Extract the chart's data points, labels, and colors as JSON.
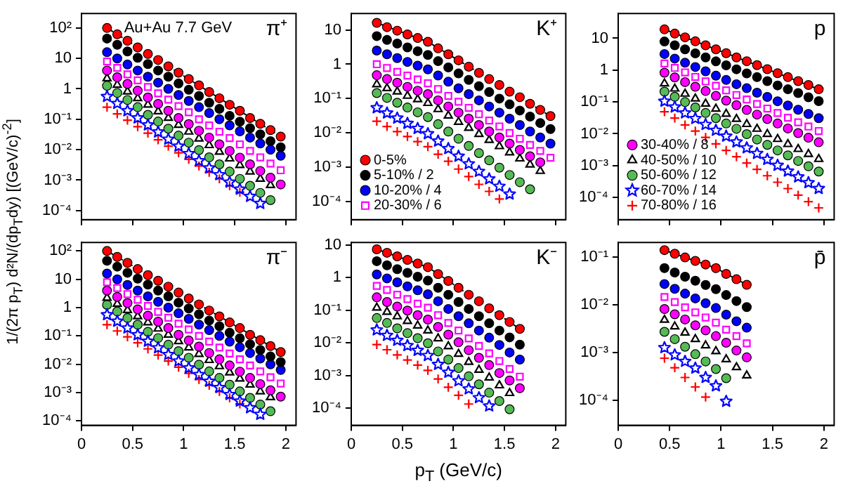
{
  "chart_data": [
    {
      "type": "scatter",
      "title": "π⁺",
      "annotations": [
        "Au+Au 7.7 GeV"
      ],
      "ylabel": "1/(2π p$_{T}$) d²N/(dp$_{T}$dy) [(GeV/c)$^{-2}$]",
      "log": "y",
      "tick_labels": "y",
      "xlim": [
        0,
        2.1
      ],
      "xticks": [
        0,
        0.5,
        1,
        1.5,
        2
      ],
      "ylim": [
        5e-05,
        300
      ],
      "yticks": [
        {
          "value": 0.0001,
          "label": "10⁻⁴"
        },
        {
          "value": 0.001,
          "label": "10⁻³"
        },
        {
          "value": 0.01,
          "label": "10⁻²"
        },
        {
          "value": 0.1,
          "label": "10⁻¹"
        },
        {
          "value": 1,
          "label": "1"
        },
        {
          "value": 10,
          "label": "10"
        },
        {
          "value": 100,
          "label": "10²"
        }
      ],
      "x": [
        0.25,
        0.35,
        0.45,
        0.55,
        0.65,
        0.75,
        0.85,
        0.95,
        1.05,
        1.15,
        1.25,
        1.35,
        1.45,
        1.55,
        1.65,
        1.75,
        1.85,
        1.95
      ],
      "series": [
        {
          "color": "#ff0000",
          "marker": "circle",
          "values": [
            100,
            62,
            38,
            23,
            14,
            8.9,
            5.5,
            3.4,
            2.1,
            1.3,
            0.79,
            0.49,
            0.3,
            0.19,
            0.11,
            0.071,
            0.044,
            0.027
          ]
        },
        {
          "color": "#000000",
          "marker": "circle",
          "values": [
            45,
            28,
            17,
            10.5,
            6.5,
            4,
            2.5,
            1.5,
            0.93,
            0.58,
            0.35,
            0.22,
            0.13,
            0.083,
            0.051,
            0.032,
            0.019,
            0.012
          ]
        },
        {
          "color": "#0000ff",
          "marker": "circle",
          "values": [
            16,
            10,
            6.3,
            4,
            2.5,
            1.6,
            1,
            0.63,
            0.4,
            0.25,
            0.16,
            0.1,
            0.063,
            0.04,
            0.025,
            0.016,
            0.01,
            0.0063
          ]
        },
        {
          "color": "#ff00ff",
          "marker": "square",
          "values": [
            7.9,
            4.9,
            3,
            1.9,
            1.15,
            0.71,
            0.44,
            0.27,
            0.17,
            0.1,
            0.063,
            0.039,
            0.024,
            0.015,
            0.0091,
            0.0056,
            0.0035,
            0.0021
          ]
        },
        {
          "color": "#ff00ff",
          "marker": "circle",
          "values": [
            4,
            2.4,
            1.45,
            0.87,
            0.52,
            0.32,
            0.19,
            0.11,
            0.069,
            0.042,
            0.025,
            0.015,
            0.0091,
            0.0055,
            0.0033,
            0.002,
            0.0012,
            0.00072
          ]
        },
        {
          "color": "#000000",
          "marker": "triangle",
          "values": [
            2.2,
            1.35,
            0.81,
            0.49,
            0.3,
            0.18,
            0.11,
            0.065,
            0.039,
            0.023,
            0.014,
            0.0085,
            0.0051,
            0.0031,
            0.0019,
            0.0011,
            0.00068,
            null
          ]
        },
        {
          "color": "#55bb55",
          "marker": "circle",
          "values": [
            1.26,
            0.73,
            0.43,
            0.25,
            0.14,
            0.084,
            0.049,
            0.029,
            0.017,
            0.0097,
            0.0056,
            0.0033,
            0.0019,
            0.0011,
            0.00065,
            0.00038,
            0.00022,
            null
          ]
        },
        {
          "color": "#0000ff",
          "marker": "star",
          "values": [
            0.56,
            0.33,
            0.19,
            0.11,
            0.065,
            0.038,
            0.022,
            0.013,
            0.0074,
            0.0043,
            0.0025,
            0.0015,
            0.00085,
            0.0005,
            0.00029,
            0.00017,
            null,
            null
          ]
        },
        {
          "color": "#ff0000",
          "marker": "cross",
          "values": [
            0.25,
            0.15,
            0.093,
            0.057,
            0.035,
            0.021,
            0.013,
            0.0079,
            0.0048,
            0.0029,
            0.0018,
            0.0011,
            0.00066,
            0.0004,
            null,
            null,
            null,
            null
          ]
        },
        {
          "type": "line",
          "color": "#000000",
          "line_style": "dashed",
          "x": [
            0.25,
            0.75,
            1.95
          ],
          "values": [
            100,
            8.9,
            0.027
          ]
        }
      ]
    },
    {
      "type": "scatter",
      "title": "K⁺",
      "log": "y",
      "tick_labels": "y",
      "legend": "bottom left",
      "xlim": [
        0,
        2.1
      ],
      "xticks": [
        0,
        0.5,
        1,
        1.5,
        2
      ],
      "ylim": [
        3e-05,
        30
      ],
      "yticks": [
        {
          "value": 0.0001,
          "label": "10⁻⁴"
        },
        {
          "value": 0.001,
          "label": "10⁻³"
        },
        {
          "value": 0.01,
          "label": "10⁻²"
        },
        {
          "value": 0.1,
          "label": "10⁻¹"
        },
        {
          "value": 1,
          "label": "1"
        },
        {
          "value": 10,
          "label": "10"
        }
      ],
      "x": [
        0.25,
        0.35,
        0.45,
        0.55,
        0.65,
        0.75,
        0.85,
        0.95,
        1.05,
        1.15,
        1.25,
        1.35,
        1.45,
        1.55,
        1.65,
        1.75,
        1.85,
        1.95
      ],
      "series": [
        {
          "name": "0-5%",
          "color": "#ff0000",
          "marker": "circle",
          "values": [
            16,
            12,
            9.5,
            7.4,
            5.8,
            4.5,
            2.9,
            1.95,
            1.3,
            0.85,
            0.56,
            0.37,
            0.25,
            0.16,
            0.11,
            0.071,
            0.047,
            0.031
          ]
        },
        {
          "name": "5-10% / 2",
          "color": "#000000",
          "marker": "circle",
          "values": [
            6.6,
            5.1,
            4,
            3.1,
            2.4,
            1.86,
            1.23,
            0.81,
            0.54,
            0.35,
            0.23,
            0.155,
            0.1,
            0.068,
            0.045,
            0.03,
            0.0195,
            0.013
          ]
        },
        {
          "name": "10-20% / 4",
          "color": "#0000ff",
          "marker": "circle",
          "values": [
            2.5,
            1.95,
            1.51,
            1.17,
            0.91,
            0.71,
            0.47,
            0.31,
            0.2,
            0.135,
            0.089,
            0.059,
            0.039,
            0.026,
            0.017,
            0.011,
            0.0074,
            0.0049
          ]
        },
        {
          "name": "20-30% / 6",
          "color": "#ff00ff",
          "marker": "square",
          "values": [
            1,
            0.78,
            0.6,
            0.47,
            0.36,
            0.28,
            0.19,
            0.12,
            0.081,
            0.054,
            0.035,
            0.023,
            0.0155,
            0.01,
            0.0068,
            0.0045,
            0.003,
            0.0019
          ]
        },
        {
          "color": "#ff00ff",
          "marker": "circle",
          "values": [
            0.48,
            0.37,
            0.29,
            0.22,
            0.17,
            0.135,
            0.089,
            0.059,
            0.039,
            0.026,
            0.017,
            0.011,
            0.0074,
            0.0049,
            0.0032,
            0.0021,
            0.0014,
            null
          ]
        },
        {
          "color": "#000000",
          "marker": "triangle",
          "values": [
            0.26,
            0.2,
            0.16,
            0.12,
            0.095,
            0.074,
            0.049,
            0.032,
            0.021,
            0.014,
            0.0093,
            0.0062,
            0.0041,
            0.0027,
            0.0018,
            0.0012,
            0.00078,
            null
          ]
        },
        {
          "color": "#55bb55",
          "marker": "circle",
          "values": [
            0.145,
            0.105,
            0.076,
            0.055,
            0.04,
            0.029,
            0.018,
            0.011,
            0.0068,
            0.0042,
            0.0026,
            0.0016,
            0.00098,
            0.0006,
            0.00037,
            0.00023,
            null,
            null
          ]
        },
        {
          "color": "#0000ff",
          "marker": "star",
          "values": [
            0.054,
            0.038,
            0.027,
            0.019,
            0.0135,
            0.0095,
            0.0058,
            0.0035,
            0.0021,
            0.00126,
            0.00076,
            0.00046,
            0.00028,
            0.000166,
            null,
            null,
            null,
            null
          ]
        },
        {
          "color": "#ff0000",
          "marker": "cross",
          "values": [
            0.022,
            0.0155,
            0.011,
            0.0079,
            0.0056,
            0.004,
            0.0024,
            0.0015,
            0.00089,
            0.00054,
            0.00032,
            0.0002,
            0.00012,
            null,
            null,
            null,
            null,
            null
          ]
        },
        {
          "type": "line",
          "color": "#000000",
          "line_style": "dashed",
          "x": [
            0.25,
            0.75,
            1.95
          ],
          "values": [
            16,
            4.5,
            0.031
          ]
        }
      ]
    },
    {
      "type": "scatter",
      "title": "p",
      "log": "y",
      "tick_labels": "y",
      "legend": "bottom left",
      "xlim": [
        0,
        2.1
      ],
      "xticks": [
        0,
        0.5,
        1,
        1.5,
        2
      ],
      "ylim": [
        2e-05,
        60
      ],
      "yticks": [
        {
          "value": 0.0001,
          "label": "10⁻⁴"
        },
        {
          "value": 0.001,
          "label": "10⁻³"
        },
        {
          "value": 0.01,
          "label": "10⁻²"
        },
        {
          "value": 0.1,
          "label": "10⁻¹"
        },
        {
          "value": 1,
          "label": "1"
        },
        {
          "value": 10,
          "label": "10"
        }
      ],
      "x": [
        0.45,
        0.55,
        0.65,
        0.75,
        0.85,
        0.95,
        1.05,
        1.15,
        1.25,
        1.35,
        1.45,
        1.55,
        1.65,
        1.75,
        1.85,
        1.95
      ],
      "series": [
        {
          "color": "#ff0000",
          "marker": "circle",
          "values": [
            19,
            14,
            10.7,
            8,
            6,
            4.5,
            3.4,
            2.5,
            1.9,
            1.43,
            1.07,
            0.8,
            0.6,
            0.45,
            0.34,
            0.25
          ]
        },
        {
          "color": "#000000",
          "marker": "circle",
          "values": [
            7.9,
            6,
            4.5,
            3.35,
            2.5,
            1.88,
            1.41,
            1.06,
            0.79,
            0.6,
            0.45,
            0.33,
            0.25,
            0.19,
            0.14,
            0.106
          ]
        },
        {
          "color": "#0000ff",
          "marker": "circle",
          "values": [
            3.2,
            2.3,
            1.7,
            1.25,
            0.92,
            0.67,
            0.49,
            0.36,
            0.27,
            0.195,
            0.144,
            0.105,
            0.077,
            0.057,
            0.042,
            0.031
          ]
        },
        {
          "color": "#ff00ff",
          "marker": "square",
          "values": [
            1.62,
            1.17,
            0.85,
            0.61,
            0.44,
            0.32,
            0.23,
            0.165,
            0.119,
            0.086,
            0.062,
            0.045,
            0.032,
            0.023,
            0.0168,
            0.0122
          ]
        },
        {
          "name": "30-40% / 8",
          "color": "#ff00ff",
          "marker": "circle",
          "values": [
            0.83,
            0.59,
            0.42,
            0.3,
            0.22,
            0.155,
            0.11,
            0.079,
            0.056,
            0.04,
            0.029,
            0.021,
            0.0147,
            0.0105,
            0.0075,
            0.0054
          ]
        },
        {
          "name": "40-50% / 10",
          "color": "#000000",
          "marker": "triangle",
          "values": [
            0.38,
            0.26,
            0.18,
            0.127,
            0.088,
            0.061,
            0.042,
            0.029,
            0.02,
            0.0142,
            0.0098,
            0.0068,
            0.0047,
            0.0033,
            0.0023,
            0.0016
          ]
        },
        {
          "name": "50-60% / 12",
          "color": "#55bb55",
          "marker": "circle",
          "values": [
            0.21,
            0.145,
            0.099,
            0.067,
            0.045,
            0.031,
            0.021,
            0.0143,
            0.0097,
            0.0066,
            0.0045,
            0.003,
            0.0021,
            0.0014,
            0.00095,
            0.00065
          ]
        },
        {
          "name": "60-70% / 14",
          "color": "#0000ff",
          "marker": "star",
          "values": [
            0.105,
            0.069,
            0.045,
            0.03,
            0.0195,
            0.0128,
            0.0084,
            0.0055,
            0.0036,
            0.0024,
            0.00156,
            0.00102,
            0.00067,
            0.00044,
            0.00029,
            0.00019
          ]
        },
        {
          "name": "70-80% / 16",
          "color": "#ff0000",
          "marker": "cross",
          "values": [
            0.049,
            0.031,
            0.019,
            0.0122,
            0.0077,
            0.0048,
            0.003,
            0.0019,
            0.0012,
            0.00076,
            0.00048,
            0.0003,
            0.00019,
            0.000118,
            7.4e-05,
            4.7e-05
          ]
        },
        {
          "type": "line",
          "color": "#000000",
          "line_style": "dashed",
          "x": [
            0.45,
            0.95,
            1.95
          ],
          "values": [
            19,
            4.5,
            0.25
          ]
        }
      ]
    },
    {
      "type": "scatter",
      "title": "π⁻",
      "log": "y",
      "xlim": [
        0,
        2.1
      ],
      "xticks": [
        0,
        0.5,
        1,
        1.5,
        2
      ],
      "ylim": [
        7e-05,
        200
      ],
      "yticks": [
        {
          "value": 0.0001,
          "label": "10⁻⁴"
        },
        {
          "value": 0.001,
          "label": "10⁻³"
        },
        {
          "value": 0.01,
          "label": "10⁻²"
        },
        {
          "value": 0.1,
          "label": "10⁻¹"
        },
        {
          "value": 1,
          "label": "1"
        },
        {
          "value": 10,
          "label": "10"
        },
        {
          "value": 100,
          "label": "10²"
        }
      ],
      "x": [
        0.25,
        0.35,
        0.45,
        0.55,
        0.65,
        0.75,
        0.85,
        0.95,
        1.05,
        1.15,
        1.25,
        1.35,
        1.45,
        1.55,
        1.65,
        1.75,
        1.85,
        1.95
      ],
      "series": [
        {
          "color": "#ff0000",
          "marker": "circle",
          "values": [
            100,
            62,
            38,
            23,
            14,
            8.9,
            5.5,
            3.4,
            2.1,
            1.3,
            0.79,
            0.49,
            0.3,
            0.19,
            0.11,
            0.071,
            0.044,
            0.027
          ]
        },
        {
          "color": "#000000",
          "marker": "circle",
          "values": [
            45,
            28,
            17,
            10.5,
            6.5,
            4,
            2.5,
            1.5,
            0.93,
            0.58,
            0.35,
            0.22,
            0.13,
            0.083,
            0.051,
            0.032,
            0.019,
            0.012
          ]
        },
        {
          "color": "#0000ff",
          "marker": "circle",
          "values": [
            16,
            10,
            6.3,
            4,
            2.5,
            1.6,
            1,
            0.63,
            0.4,
            0.25,
            0.16,
            0.1,
            0.063,
            0.04,
            0.025,
            0.016,
            0.01,
            0.0063
          ]
        },
        {
          "color": "#ff00ff",
          "marker": "square",
          "values": [
            7.9,
            4.9,
            3,
            1.9,
            1.15,
            0.71,
            0.44,
            0.27,
            0.17,
            0.1,
            0.063,
            0.039,
            0.024,
            0.015,
            0.0091,
            0.0056,
            0.0035,
            0.0021
          ]
        },
        {
          "color": "#ff00ff",
          "marker": "circle",
          "values": [
            4,
            2.4,
            1.45,
            0.87,
            0.52,
            0.32,
            0.19,
            0.11,
            0.069,
            0.042,
            0.025,
            0.015,
            0.0091,
            0.0055,
            0.0033,
            0.002,
            0.0012,
            0.00072
          ]
        },
        {
          "color": "#000000",
          "marker": "triangle",
          "values": [
            2.2,
            1.35,
            0.81,
            0.49,
            0.3,
            0.18,
            0.11,
            0.065,
            0.039,
            0.023,
            0.014,
            0.0085,
            0.0051,
            0.0031,
            0.0019,
            0.0011,
            0.00068,
            null
          ]
        },
        {
          "color": "#55bb55",
          "marker": "circle",
          "values": [
            1.26,
            0.73,
            0.43,
            0.25,
            0.14,
            0.084,
            0.049,
            0.029,
            0.017,
            0.0097,
            0.0056,
            0.0033,
            0.0019,
            0.0011,
            0.00065,
            0.00038,
            0.00022,
            null
          ]
        },
        {
          "color": "#0000ff",
          "marker": "star",
          "values": [
            0.56,
            0.33,
            0.19,
            0.11,
            0.065,
            0.038,
            0.022,
            0.013,
            0.0074,
            0.0043,
            0.0025,
            0.0015,
            0.00085,
            0.0005,
            0.00029,
            0.00017,
            null,
            null
          ]
        },
        {
          "color": "#ff0000",
          "marker": "cross",
          "values": [
            0.25,
            0.15,
            0.093,
            0.057,
            0.035,
            0.021,
            0.013,
            0.0079,
            0.0048,
            0.0029,
            0.0018,
            0.0011,
            0.00066,
            0.0004,
            null,
            null,
            null,
            null
          ]
        },
        {
          "type": "line",
          "color": "#000000",
          "line_style": "dashed",
          "x": [
            0.25,
            0.75,
            1.95
          ],
          "values": [
            100,
            8.9,
            0.027
          ]
        }
      ]
    },
    {
      "type": "scatter",
      "title": "K⁻",
      "xlabel": "p$_{T}$ (GeV/c)",
      "log": "y",
      "xlim": [
        0,
        2.1
      ],
      "xticks": [
        0,
        0.5,
        1,
        1.5,
        2
      ],
      "ylim": [
        3e-05,
        12
      ],
      "yticks": [
        {
          "value": 0.0001,
          "label": "10⁻⁴"
        },
        {
          "value": 0.001,
          "label": "10⁻³"
        },
        {
          "value": 0.01,
          "label": "10⁻²"
        },
        {
          "value": 0.1,
          "label": "10⁻¹"
        },
        {
          "value": 1,
          "label": "1"
        },
        {
          "value": 10,
          "label": "10"
        }
      ],
      "x": [
        0.25,
        0.35,
        0.45,
        0.55,
        0.65,
        0.75,
        0.85,
        0.95,
        1.05,
        1.15,
        1.25,
        1.35,
        1.45,
        1.55,
        1.65
      ],
      "series": [
        {
          "color": "#ff0000",
          "marker": "circle",
          "values": [
            7.4,
            5.8,
            4.5,
            3.5,
            2.7,
            2.1,
            1.29,
            0.79,
            0.49,
            0.3,
            0.19,
            0.115,
            0.071,
            0.044,
            0.027
          ]
        },
        {
          "color": "#000000",
          "marker": "circle",
          "values": [
            3.2,
            2.4,
            1.82,
            1.41,
            1.07,
            0.81,
            0.49,
            0.3,
            0.18,
            0.11,
            0.066,
            0.04,
            0.024,
            0.0148,
            0.0089
          ]
        },
        {
          "color": "#0000ff",
          "marker": "circle",
          "values": [
            1.26,
            0.95,
            0.72,
            0.54,
            0.41,
            0.31,
            0.19,
            0.11,
            0.066,
            0.04,
            0.024,
            0.0145,
            0.0087,
            0.0051,
            0.0031
          ]
        },
        {
          "color": "#ff00ff",
          "marker": "square",
          "values": [
            0.56,
            0.42,
            0.3,
            0.22,
            0.16,
            0.12,
            0.071,
            0.041,
            0.024,
            0.0138,
            0.0081,
            0.0048,
            0.0028,
            0.0016,
            0.00093
          ]
        },
        {
          "color": "#ff00ff",
          "marker": "circle",
          "values": [
            0.25,
            0.18,
            0.13,
            0.098,
            0.071,
            0.052,
            0.031,
            0.018,
            0.0105,
            0.006,
            0.0035,
            0.0021,
            0.0012,
            0.00071,
            0.00041
          ]
        },
        {
          "color": "#000000",
          "marker": "triangle",
          "values": [
            0.12,
            0.089,
            0.065,
            0.047,
            0.034,
            0.024,
            0.0138,
            0.0079,
            0.0046,
            0.0026,
            0.0015,
            0.00087,
            0.0005,
            0.00029,
            null
          ]
        },
        {
          "color": "#55bb55",
          "marker": "circle",
          "values": [
            0.058,
            0.041,
            0.028,
            0.02,
            0.014,
            0.0098,
            0.0055,
            0.0031,
            0.0017,
            0.00095,
            0.00054,
            0.0003,
            0.000166,
            9.3e-05,
            null
          ]
        },
        {
          "color": "#0000ff",
          "marker": "star",
          "values": [
            0.025,
            0.017,
            0.012,
            0.0083,
            0.0059,
            0.0041,
            0.0022,
            0.00126,
            0.00069,
            0.00039,
            0.00021,
            0.000117,
            null,
            null,
            null
          ]
        },
        {
          "color": "#ff0000",
          "marker": "cross",
          "values": [
            0.0089,
            0.0062,
            0.0043,
            0.003,
            0.0021,
            0.00145,
            0.00079,
            0.00044,
            0.00025,
            0.000135,
            null,
            null,
            null,
            null,
            null
          ]
        },
        {
          "type": "line",
          "color": "#000000",
          "line_style": "dashed",
          "x": [
            0.25,
            0.75,
            1.65
          ],
          "values": [
            7.4,
            2.1,
            0.027
          ]
        }
      ]
    },
    {
      "type": "scatter",
      "title": "p̄",
      "log": "y",
      "xlim": [
        0,
        2.1
      ],
      "xticks": [
        0,
        0.5,
        1,
        1.5,
        2
      ],
      "ylim": [
        3e-05,
        0.2
      ],
      "yticks": [
        {
          "value": 0.0001,
          "label": "10⁻⁴"
        },
        {
          "value": 0.001,
          "label": "10⁻³"
        },
        {
          "value": 0.01,
          "label": "10⁻²"
        },
        {
          "value": 0.1,
          "label": "10⁻¹"
        }
      ],
      "x": [
        0.45,
        0.55,
        0.65,
        0.75,
        0.85,
        0.95,
        1.05,
        1.15,
        1.25
      ],
      "series": [
        {
          "color": "#ff0000",
          "marker": "circle",
          "values": [
            0.138,
            0.116,
            0.097,
            0.082,
            0.069,
            0.058,
            0.044,
            0.034,
            0.026
          ]
        },
        {
          "color": "#000000",
          "marker": "circle",
          "values": [
            0.058,
            0.047,
            0.0385,
            0.0316,
            0.0258,
            0.0211,
            0.0159,
            0.0119,
            0.0089
          ]
        },
        {
          "color": "#0000ff",
          "marker": "circle",
          "values": [
            0.027,
            0.0214,
            0.017,
            0.0135,
            0.0107,
            0.0085,
            0.0062,
            0.0045,
            0.0033
          ]
        },
        {
          "color": "#ff00ff",
          "marker": "square",
          "values": [
            0.0145,
            0.0113,
            0.0088,
            0.0069,
            0.0054,
            0.0042,
            0.003,
            0.0022,
            0.00155
          ]
        },
        {
          "color": "#ff00ff",
          "marker": "circle",
          "values": [
            0.0081,
            0.0063,
            0.0049,
            0.0037,
            0.0029,
            0.0022,
            0.0016,
            0.0011,
            0.00079
          ]
        },
        {
          "color": "#000000",
          "marker": "triangle",
          "values": [
            0.0048,
            0.0035,
            0.0026,
            0.0019,
            0.0014,
            0.00106,
            0.00072,
            0.00049,
            0.00033
          ]
        },
        {
          "color": "#55bb55",
          "marker": "circle",
          "values": [
            0.0027,
            0.0019,
            0.00132,
            0.00092,
            0.00065,
            0.00045,
            0.00029,
            null,
            null
          ]
        },
        {
          "color": "#0000ff",
          "marker": "star",
          "values": [
            0.00126,
            0.00089,
            0.00065,
            0.00047,
            0.0003,
            0.0002,
            9.5e-05,
            null,
            null
          ]
        },
        {
          "color": "#ff0000",
          "marker": "cross",
          "values": [
            0.00076,
            0.00048,
            0.0003,
            0.00019,
            0.000117,
            null,
            null,
            null,
            null
          ]
        },
        {
          "type": "line",
          "color": "#000000",
          "line_style": "dashed",
          "x": [
            0.45,
            0.95,
            1.25
          ],
          "values": [
            0.138,
            0.058,
            0.026
          ]
        }
      ]
    }
  ]
}
